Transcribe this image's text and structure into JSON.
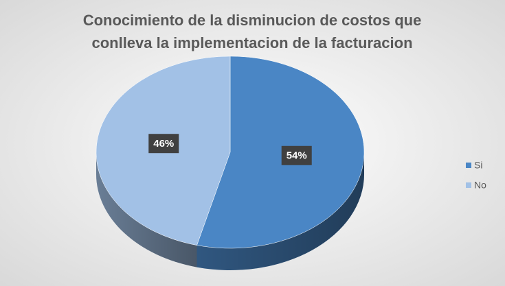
{
  "chart_data": {
    "type": "pie",
    "title": [
      "Conocimiento de la disminucion de costos que",
      "conlleva la implementacion de la facturacion"
    ],
    "categories": [
      "Si",
      "No"
    ],
    "values": [
      54,
      46
    ],
    "value_labels": [
      "54%",
      "46%"
    ],
    "colors": [
      "#4a86c5",
      "#a2c1e6"
    ],
    "legend": "right"
  }
}
